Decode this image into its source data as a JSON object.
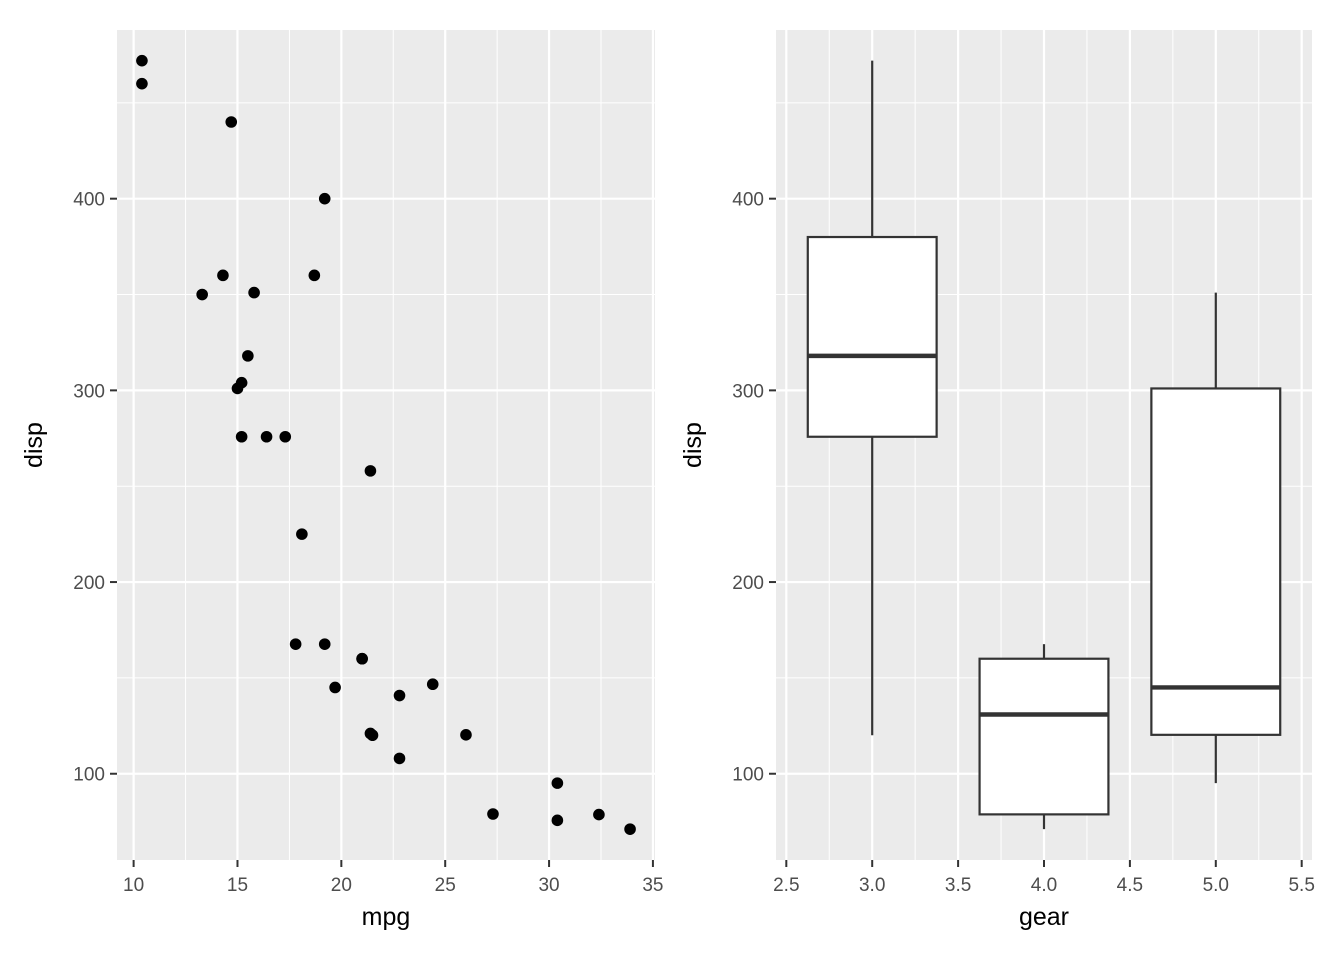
{
  "chart_data": [
    {
      "type": "scatter",
      "xlabel": "mpg",
      "ylabel": "disp",
      "xlim": [
        9.2,
        35.1
      ],
      "ylim": [
        55.0,
        488.0
      ],
      "xticks": [
        10,
        15,
        20,
        25,
        30,
        35
      ],
      "yticks": [
        100,
        200,
        300,
        400
      ],
      "grid": true,
      "points": [
        {
          "x": 10.4,
          "y": 472
        },
        {
          "x": 10.4,
          "y": 460
        },
        {
          "x": 14.7,
          "y": 440
        },
        {
          "x": 19.2,
          "y": 400
        },
        {
          "x": 14.3,
          "y": 360
        },
        {
          "x": 18.7,
          "y": 360
        },
        {
          "x": 13.3,
          "y": 350
        },
        {
          "x": 15.8,
          "y": 351
        },
        {
          "x": 15.5,
          "y": 318
        },
        {
          "x": 15.2,
          "y": 304
        },
        {
          "x": 15.0,
          "y": 301
        },
        {
          "x": 15.2,
          "y": 275.8
        },
        {
          "x": 16.4,
          "y": 275.8
        },
        {
          "x": 17.3,
          "y": 275.8
        },
        {
          "x": 21.4,
          "y": 258
        },
        {
          "x": 18.1,
          "y": 225
        },
        {
          "x": 17.8,
          "y": 167.6
        },
        {
          "x": 19.2,
          "y": 167.6
        },
        {
          "x": 21.0,
          "y": 160
        },
        {
          "x": 21.0,
          "y": 160
        },
        {
          "x": 19.7,
          "y": 145
        },
        {
          "x": 24.4,
          "y": 146.7
        },
        {
          "x": 22.8,
          "y": 140.8
        },
        {
          "x": 21.4,
          "y": 121
        },
        {
          "x": 21.5,
          "y": 120.1
        },
        {
          "x": 26.0,
          "y": 120.3
        },
        {
          "x": 22.8,
          "y": 108
        },
        {
          "x": 30.4,
          "y": 95.1
        },
        {
          "x": 27.3,
          "y": 79
        },
        {
          "x": 32.4,
          "y": 78.7
        },
        {
          "x": 30.4,
          "y": 75.7
        },
        {
          "x": 33.9,
          "y": 71.1
        }
      ],
      "colors": {
        "point": "#000000",
        "panel": "#ebebeb",
        "grid": "#ffffff"
      }
    },
    {
      "type": "boxplot",
      "xlabel": "gear",
      "ylabel": "disp",
      "xlim": [
        2.44,
        5.56
      ],
      "ylim": [
        55.0,
        488.0
      ],
      "xticks": [
        "2.5",
        "3.0",
        "3.5",
        "4.0",
        "4.5",
        "5.0",
        "5.5"
      ],
      "yticks": [
        100,
        200,
        300,
        400
      ],
      "grid": true,
      "boxes": [
        {
          "x": 3,
          "whisker_low": 120.1,
          "q1": 275.8,
          "median": 318,
          "q3": 380,
          "whisker_high": 472
        },
        {
          "x": 4,
          "whisker_low": 71.1,
          "q1": 78.8,
          "median": 130.9,
          "q3": 160,
          "whisker_high": 167.6
        },
        {
          "x": 5,
          "whisker_low": 95.1,
          "q1": 120.3,
          "median": 145,
          "q3": 301,
          "whisker_high": 351
        }
      ],
      "colors": {
        "box_fill": "#ffffff",
        "box_line": "#333333",
        "panel": "#ebebeb",
        "grid": "#ffffff"
      }
    }
  ]
}
